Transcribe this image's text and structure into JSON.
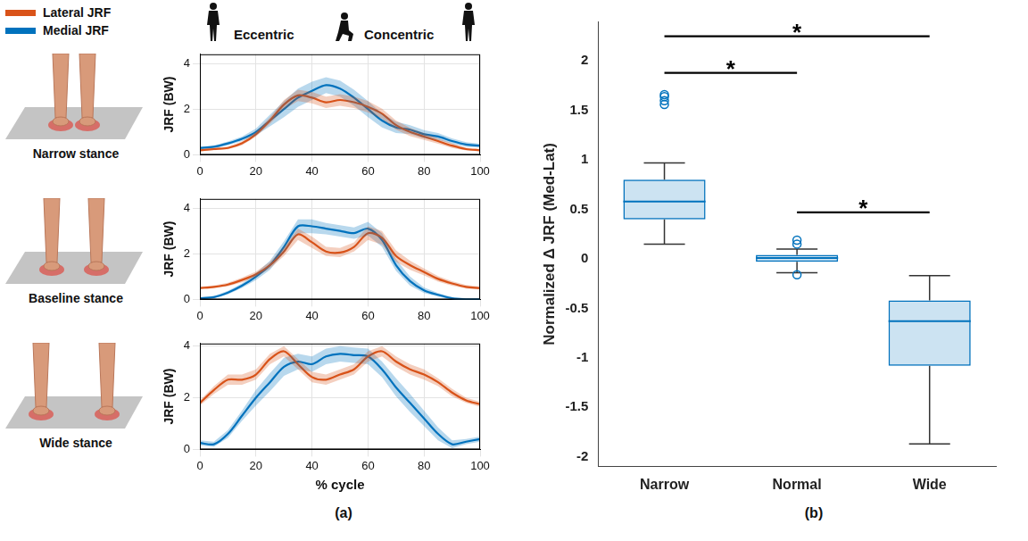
{
  "figure": {
    "phase_labels": [
      "Eccentric",
      "Concentric"
    ],
    "panel_labels": [
      "(a)",
      "(b)"
    ]
  },
  "chart_data": [
    {
      "type": "line",
      "title": "Narrow stance",
      "ylabel": "JRF (BW)",
      "legend": "top left",
      "grid": true,
      "x": [
        0,
        5,
        10,
        15,
        20,
        25,
        30,
        35,
        40,
        45,
        50,
        55,
        60,
        65,
        70,
        75,
        80,
        85,
        90,
        95,
        100
      ],
      "xlim": [
        0,
        100
      ],
      "xticks": [
        0,
        20,
        40,
        60,
        80,
        100
      ],
      "ylim": [
        0,
        4.4
      ],
      "yticks": [
        0,
        2,
        4
      ],
      "series": [
        {
          "name": "Lateral JRF",
          "color": "#d95319",
          "values": [
            0.2,
            0.25,
            0.3,
            0.5,
            0.9,
            1.5,
            2.2,
            2.6,
            2.5,
            2.3,
            2.4,
            2.3,
            2.1,
            1.8,
            1.3,
            1.0,
            0.8,
            0.6,
            0.4,
            0.25,
            0.2
          ],
          "sd": [
            0.05,
            0.05,
            0.06,
            0.08,
            0.1,
            0.15,
            0.2,
            0.25,
            0.25,
            0.25,
            0.25,
            0.25,
            0.25,
            0.22,
            0.2,
            0.18,
            0.15,
            0.12,
            0.1,
            0.06,
            0.05
          ]
        },
        {
          "name": "Medial JRF",
          "color": "#0072bd",
          "values": [
            0.3,
            0.35,
            0.5,
            0.7,
            1.0,
            1.5,
            2.0,
            2.5,
            2.8,
            3.05,
            2.9,
            2.5,
            2.0,
            1.5,
            1.2,
            1.1,
            0.9,
            0.8,
            0.6,
            0.45,
            0.4
          ],
          "sd": [
            0.05,
            0.06,
            0.08,
            0.1,
            0.15,
            0.25,
            0.35,
            0.4,
            0.4,
            0.35,
            0.35,
            0.35,
            0.35,
            0.3,
            0.25,
            0.2,
            0.18,
            0.15,
            0.12,
            0.1,
            0.08
          ]
        }
      ]
    },
    {
      "type": "line",
      "title": "Baseline stance",
      "ylabel": "JRF (BW)",
      "grid": true,
      "x": [
        0,
        5,
        10,
        15,
        20,
        25,
        30,
        35,
        40,
        45,
        50,
        55,
        60,
        65,
        70,
        75,
        80,
        85,
        90,
        95,
        100
      ],
      "xlim": [
        0,
        100
      ],
      "xticks": [
        0,
        20,
        40,
        60,
        80,
        100
      ],
      "ylim": [
        0,
        4.4
      ],
      "yticks": [
        0,
        2,
        4
      ],
      "series": [
        {
          "name": "Lateral JRF",
          "color": "#d95319",
          "values": [
            0.5,
            0.55,
            0.65,
            0.85,
            1.1,
            1.5,
            2.1,
            2.85,
            2.5,
            2.1,
            2.05,
            2.3,
            2.9,
            2.7,
            1.9,
            1.5,
            1.2,
            0.9,
            0.7,
            0.55,
            0.5
          ],
          "sd": [
            0.06,
            0.06,
            0.08,
            0.1,
            0.12,
            0.15,
            0.2,
            0.25,
            0.25,
            0.2,
            0.2,
            0.2,
            0.3,
            0.3,
            0.25,
            0.2,
            0.15,
            0.12,
            0.1,
            0.08,
            0.06
          ]
        },
        {
          "name": "Medial JRF",
          "color": "#0072bd",
          "values": [
            0.05,
            0.1,
            0.3,
            0.6,
            1.0,
            1.5,
            2.3,
            3.2,
            3.2,
            3.1,
            3.0,
            2.9,
            3.1,
            2.6,
            1.5,
            0.8,
            0.4,
            0.2,
            0.05,
            0.0,
            0.0
          ],
          "sd": [
            0.05,
            0.05,
            0.08,
            0.1,
            0.15,
            0.2,
            0.25,
            0.3,
            0.3,
            0.25,
            0.25,
            0.25,
            0.3,
            0.3,
            0.25,
            0.2,
            0.12,
            0.08,
            0.05,
            0.05,
            0.05
          ]
        }
      ]
    },
    {
      "type": "line",
      "title": "Wide stance",
      "ylabel": "JRF (BW)",
      "xlabel": "% cycle",
      "grid": true,
      "x": [
        0,
        5,
        10,
        15,
        20,
        25,
        30,
        35,
        40,
        45,
        50,
        55,
        60,
        65,
        70,
        75,
        80,
        85,
        90,
        95,
        100
      ],
      "xlim": [
        0,
        100
      ],
      "xticks": [
        0,
        20,
        40,
        60,
        80,
        100
      ],
      "ylim": [
        0,
        4.1
      ],
      "yticks": [
        0,
        2,
        4
      ],
      "series": [
        {
          "name": "Lateral JRF",
          "color": "#d95319",
          "values": [
            1.8,
            2.3,
            2.7,
            2.7,
            2.9,
            3.5,
            3.8,
            3.3,
            2.8,
            2.7,
            2.9,
            3.1,
            3.6,
            3.8,
            3.4,
            3.1,
            2.9,
            2.6,
            2.2,
            1.9,
            1.75
          ],
          "sd": [
            0.1,
            0.15,
            0.2,
            0.2,
            0.2,
            0.2,
            0.2,
            0.2,
            0.2,
            0.2,
            0.2,
            0.2,
            0.2,
            0.2,
            0.2,
            0.2,
            0.2,
            0.15,
            0.15,
            0.1,
            0.1
          ]
        },
        {
          "name": "Medial JRF",
          "color": "#0072bd",
          "values": [
            0.25,
            0.2,
            0.6,
            1.3,
            2.0,
            2.6,
            3.2,
            3.4,
            3.3,
            3.6,
            3.7,
            3.65,
            3.6,
            3.1,
            2.4,
            1.8,
            1.2,
            0.6,
            0.2,
            0.3,
            0.4
          ],
          "sd": [
            0.1,
            0.1,
            0.15,
            0.2,
            0.3,
            0.35,
            0.35,
            0.3,
            0.3,
            0.3,
            0.3,
            0.3,
            0.3,
            0.3,
            0.35,
            0.35,
            0.3,
            0.25,
            0.15,
            0.1,
            0.1
          ]
        }
      ]
    },
    {
      "type": "box",
      "ylabel": "Normalized Δ JRF (Med-Lat)",
      "grid": false,
      "color": "#0072bd",
      "marker": "circle",
      "categories": [
        "Narrow",
        "Normal",
        "Wide"
      ],
      "ylim": [
        -2.1,
        2.4
      ],
      "yticks": [
        -2,
        -1.5,
        -1,
        -0.5,
        0,
        0.5,
        1,
        1.5,
        2
      ],
      "boxes": [
        {
          "min": 0.15,
          "q1": 0.4,
          "median": 0.58,
          "q3": 0.8,
          "max": 0.97,
          "outliers": [
            1.56,
            1.6,
            1.64,
            1.66
          ]
        },
        {
          "min": -0.14,
          "q1": -0.03,
          "median": 0.01,
          "q3": 0.04,
          "max": 0.1,
          "outliers": [
            0.15,
            0.19,
            -0.16
          ]
        },
        {
          "min": -1.87,
          "q1": -1.08,
          "median": -0.63,
          "q3": -0.42,
          "max": -0.17,
          "outliers": []
        }
      ],
      "annotations": [
        {
          "from": "Narrow",
          "to": "Wide",
          "y": 2.25,
          "text": "*"
        },
        {
          "from": "Narrow",
          "to": "Normal",
          "y": 1.88,
          "text": "*"
        },
        {
          "from": "Normal",
          "to": "Wide",
          "y": 0.47,
          "text": "*"
        }
      ]
    }
  ]
}
